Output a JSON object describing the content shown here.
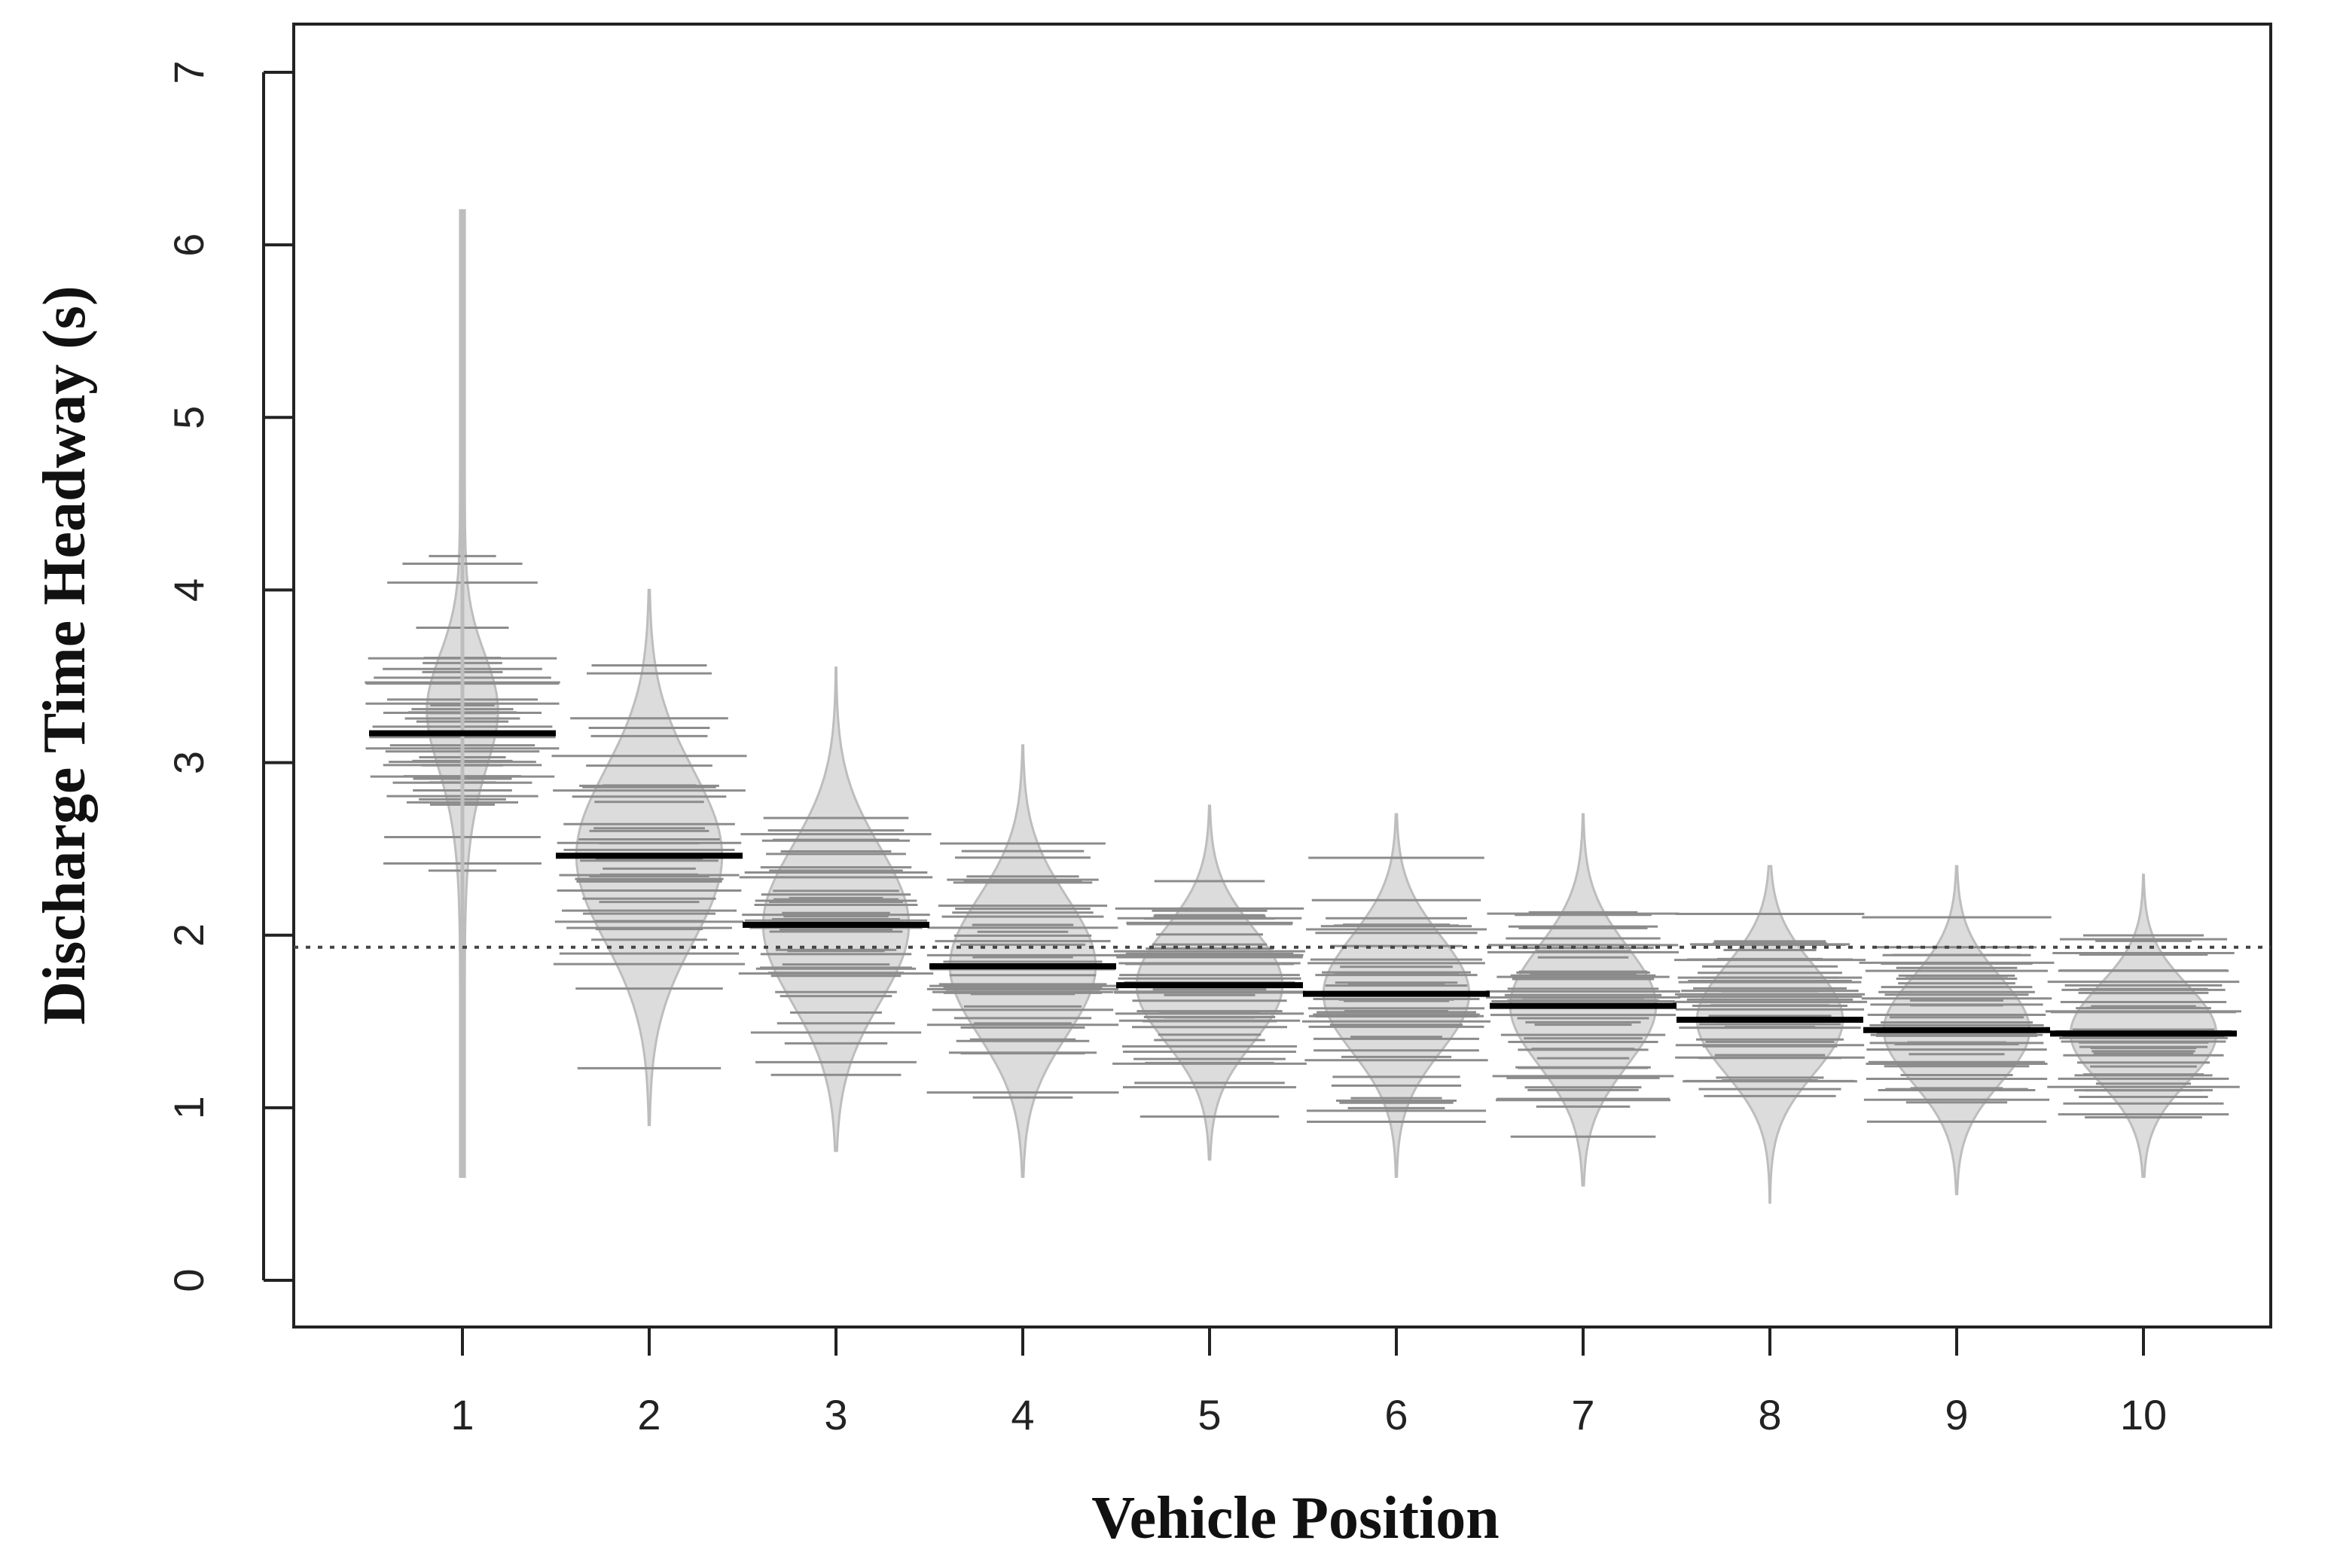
{
  "chart_data": {
    "type": "beanplot",
    "title": "",
    "xlabel": "Vehicle Position",
    "ylabel": "Discharge Time Headway (s)",
    "categories": [
      "1",
      "2",
      "3",
      "4",
      "5",
      "6",
      "7",
      "8",
      "9",
      "10"
    ],
    "ylim": [
      0,
      7
    ],
    "yticks": [
      0,
      1,
      2,
      3,
      4,
      5,
      6,
      7
    ],
    "overall_mean": 1.93,
    "grid": false,
    "legend": "none",
    "colors": {
      "bean_fill": "#dcdcdc",
      "bean_outline": "#bdbdbd",
      "beanline": "#8c8c8c",
      "mean_line": "#000000",
      "reference_line": "#444444"
    },
    "series": [
      {
        "category": "1",
        "mean": 3.17,
        "min": 0.6,
        "max": 6.2
      },
      {
        "category": "2",
        "mean": 2.46,
        "min": 0.9,
        "max": 4.0
      },
      {
        "category": "3",
        "mean": 2.06,
        "min": 0.75,
        "max": 3.55
      },
      {
        "category": "4",
        "mean": 1.82,
        "min": 0.6,
        "max": 3.1
      },
      {
        "category": "5",
        "mean": 1.71,
        "min": 0.7,
        "max": 2.75
      },
      {
        "category": "6",
        "mean": 1.66,
        "min": 0.6,
        "max": 2.7
      },
      {
        "category": "7",
        "mean": 1.59,
        "min": 0.55,
        "max": 2.7
      },
      {
        "category": "8",
        "mean": 1.51,
        "min": 0.45,
        "max": 2.4
      },
      {
        "category": "9",
        "mean": 1.45,
        "min": 0.5,
        "max": 2.4
      },
      {
        "category": "10",
        "mean": 1.43,
        "min": 0.6,
        "max": 2.35
      }
    ]
  }
}
